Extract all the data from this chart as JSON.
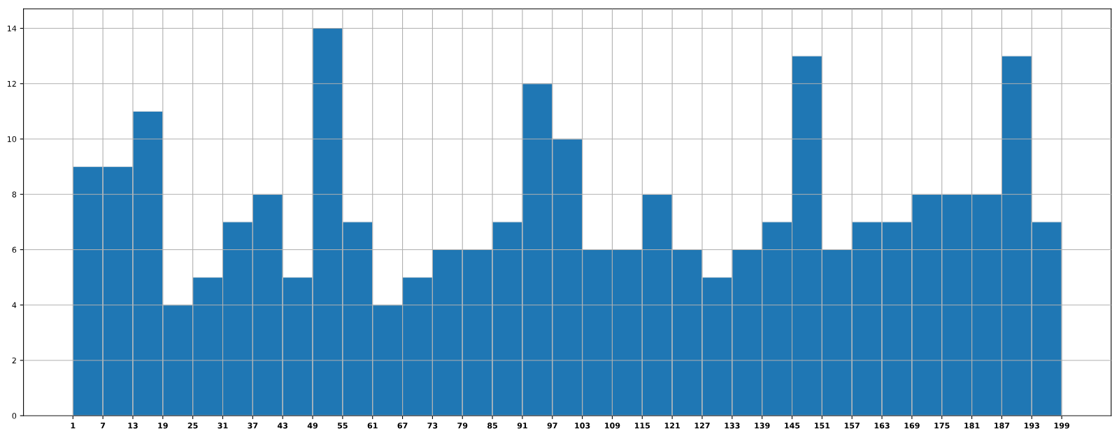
{
  "chart_data": {
    "type": "histogram",
    "bins": [
      1,
      7,
      13,
      19,
      25,
      31,
      37,
      43,
      49,
      55,
      61,
      67,
      73,
      79,
      85,
      91,
      97,
      103,
      109,
      115,
      121,
      127,
      133,
      139,
      145,
      151,
      157,
      163,
      169,
      175,
      181,
      187,
      193,
      199
    ],
    "values": [
      9,
      9,
      11,
      4,
      5,
      7,
      8,
      5,
      14,
      7,
      4,
      5,
      6,
      6,
      7,
      12,
      10,
      6,
      6,
      8,
      6,
      5,
      6,
      7,
      13,
      6,
      7,
      7,
      8,
      8,
      8,
      13,
      7
    ],
    "color": "#1f77b4",
    "xlim": [
      -8.9,
      208.9
    ],
    "ylim": [
      0,
      14.7
    ],
    "xticks": [
      1,
      7,
      13,
      19,
      25,
      31,
      37,
      43,
      49,
      55,
      61,
      67,
      73,
      79,
      85,
      91,
      97,
      103,
      109,
      115,
      121,
      127,
      133,
      139,
      145,
      151,
      157,
      163,
      169,
      175,
      181,
      187,
      193,
      199
    ],
    "yticks": [
      0,
      2,
      4,
      6,
      8,
      10,
      12,
      14
    ],
    "grid": true
  }
}
